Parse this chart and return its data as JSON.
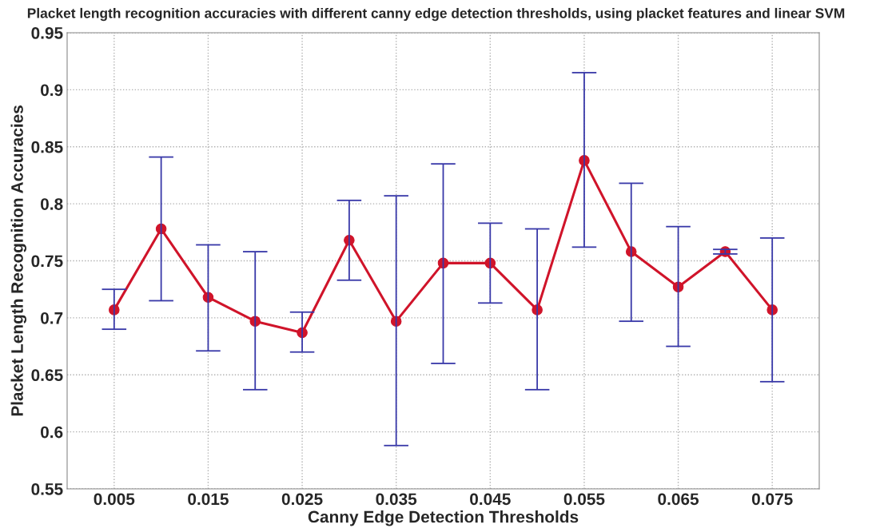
{
  "chart_data": {
    "type": "line",
    "title": "Placket length recognition accuracies with different canny edge detection thresholds, using placket features and linear SVM",
    "xlabel": "Canny Edge Detection Thresholds",
    "ylabel": "Placket Length Recognition Accuracies",
    "x": [
      0.005,
      0.01,
      0.015,
      0.02,
      0.025,
      0.03,
      0.035,
      0.04,
      0.045,
      0.05,
      0.055,
      0.06,
      0.065,
      0.07,
      0.075
    ],
    "series": [
      {
        "color": "#d0142a",
        "values": [
          0.707,
          0.778,
          0.718,
          0.697,
          0.687,
          0.768,
          0.697,
          0.748,
          0.748,
          0.707,
          0.838,
          0.758,
          0.727,
          0.758,
          0.707
        ],
        "errors": [
          [
            0.69,
            0.725
          ],
          [
            0.715,
            0.841
          ],
          [
            0.671,
            0.764
          ],
          [
            0.637,
            0.758
          ],
          [
            0.67,
            0.705
          ],
          [
            0.733,
            0.803
          ],
          [
            0.588,
            0.807
          ],
          [
            0.66,
            0.835
          ],
          [
            0.713,
            0.783
          ],
          [
            0.637,
            0.778
          ],
          [
            0.762,
            0.915
          ],
          [
            0.697,
            0.818
          ],
          [
            0.675,
            0.78
          ],
          [
            0.756,
            0.76
          ],
          [
            0.644,
            0.77
          ]
        ]
      }
    ],
    "xlim": [
      0,
      0.08
    ],
    "xticks": [
      0.005,
      0.015,
      0.025,
      0.035,
      0.045,
      0.055,
      0.065,
      0.075
    ],
    "ylim": [
      0.55,
      0.95
    ],
    "yticks": [
      0.55,
      0.6,
      0.65,
      0.7,
      0.75,
      0.8,
      0.85,
      0.9,
      0.95
    ],
    "grid": true,
    "marker": "circle",
    "line_style": "solid"
  }
}
